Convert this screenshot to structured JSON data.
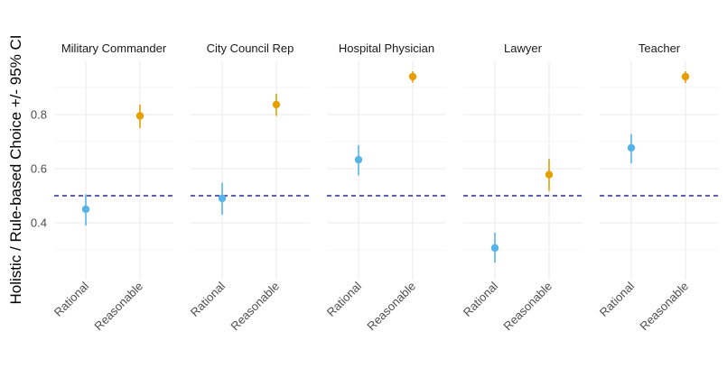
{
  "chart_data": {
    "type": "scatter",
    "subtype": "pointrange-faceted",
    "ylabel": "Holistic / Rule-based Choice +/- 95% CI",
    "xlabel": "",
    "ylim": [
      0.24,
      0.98
    ],
    "yticks": [
      0.4,
      0.6,
      0.8
    ],
    "ytick_labels": [
      "0.4",
      "0.6",
      "0.8"
    ],
    "y_minor_ticks": [
      0.3,
      0.5,
      0.7,
      0.9
    ],
    "reference_line": {
      "y": 0.5,
      "style": "dashed",
      "color": "#000080"
    },
    "categories": [
      "Rational",
      "Reasonable"
    ],
    "category_colors": {
      "Rational": "#56B4E9",
      "Reasonable": "#E69F00"
    },
    "grid": true,
    "legend": "none",
    "facets": [
      {
        "title": "Military Commander",
        "points": [
          {
            "x": "Rational",
            "y": 0.45,
            "lower": 0.39,
            "upper": 0.505
          },
          {
            "x": "Reasonable",
            "y": 0.795,
            "lower": 0.75,
            "upper": 0.837
          }
        ]
      },
      {
        "title": "City Council Rep",
        "points": [
          {
            "x": "Rational",
            "y": 0.49,
            "lower": 0.43,
            "upper": 0.548
          },
          {
            "x": "Reasonable",
            "y": 0.837,
            "lower": 0.795,
            "upper": 0.877
          }
        ]
      },
      {
        "title": "Hospital Physician",
        "points": [
          {
            "x": "Rational",
            "y": 0.633,
            "lower": 0.575,
            "upper": 0.687
          },
          {
            "x": "Reasonable",
            "y": 0.94,
            "lower": 0.918,
            "upper": 0.96
          }
        ]
      },
      {
        "title": "Lawyer",
        "points": [
          {
            "x": "Rational",
            "y": 0.307,
            "lower": 0.253,
            "upper": 0.363
          },
          {
            "x": "Reasonable",
            "y": 0.578,
            "lower": 0.518,
            "upper": 0.635
          }
        ]
      },
      {
        "title": "Teacher",
        "points": [
          {
            "x": "Rational",
            "y": 0.677,
            "lower": 0.62,
            "upper": 0.728
          },
          {
            "x": "Reasonable",
            "y": 0.94,
            "lower": 0.917,
            "upper": 0.96
          }
        ]
      }
    ]
  }
}
